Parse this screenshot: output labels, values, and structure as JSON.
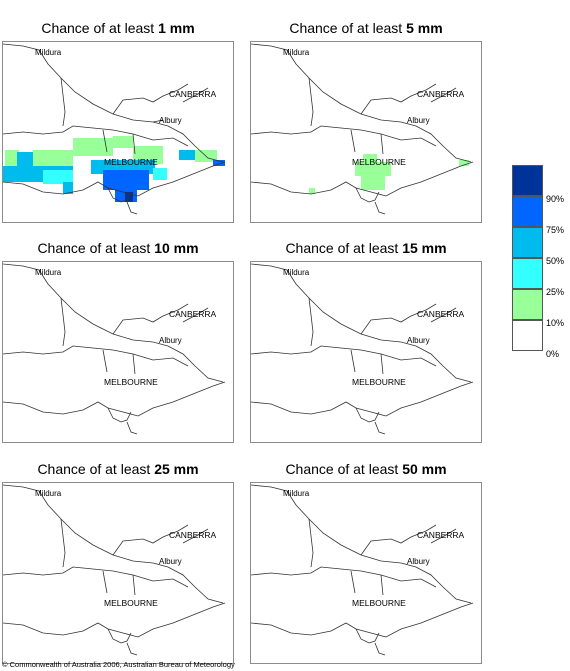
{
  "panels": [
    {
      "title_prefix": "Chance of at least ",
      "amount": "1 mm"
    },
    {
      "title_prefix": "Chance of at least ",
      "amount": "5 mm"
    },
    {
      "title_prefix": "Chance of at least ",
      "amount": "10 mm"
    },
    {
      "title_prefix": "Chance of at least ",
      "amount": "15 mm"
    },
    {
      "title_prefix": "Chance of at least ",
      "amount": "25 mm"
    },
    {
      "title_prefix": "Chance of at least ",
      "amount": "50 mm"
    }
  ],
  "map_labels": {
    "mildura": "Mildura",
    "canberra": "CANBERRA",
    "albury": "Albury",
    "melbourne": "MELBOURNE"
  },
  "legend": {
    "labels": [
      "90%",
      "75%",
      "50%",
      "25%",
      "10%",
      "0%"
    ],
    "colors": [
      "#00339a",
      "#0066ff",
      "#00bbee",
      "#33ffff",
      "#99ff99",
      "#ffffff"
    ]
  },
  "copyright": "© Commonwealth of Australia 2006, Australian Bureau of Meteorology"
}
